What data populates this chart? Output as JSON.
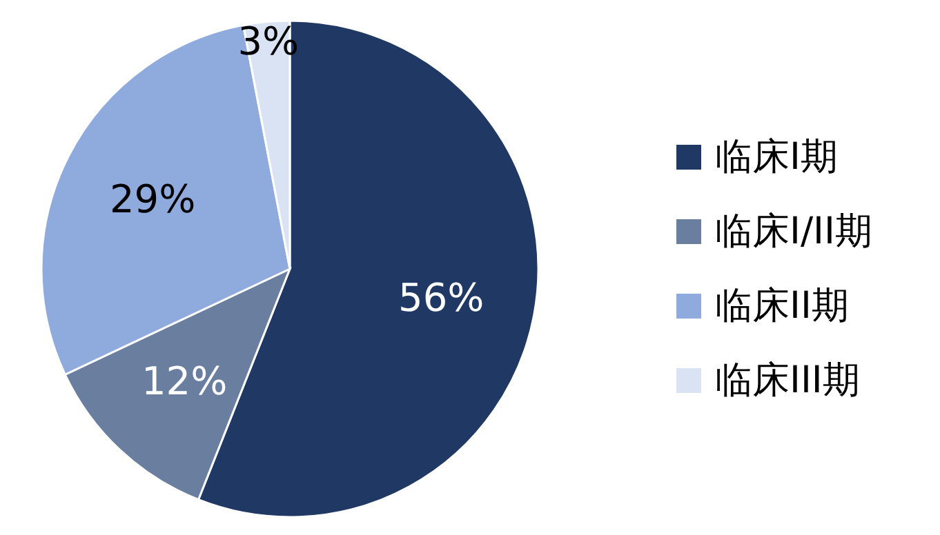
{
  "chart_data": {
    "type": "pie",
    "categories": [
      "临床I期",
      "临床I/II期",
      "临床II期",
      "临床III期"
    ],
    "values": [
      56,
      12,
      29,
      3
    ],
    "colors": [
      "#203864",
      "#6a7f9f",
      "#8faadc",
      "#dae3f3"
    ],
    "value_labels": [
      "56%",
      "12%",
      "29%",
      "3%"
    ],
    "legend": "right"
  }
}
